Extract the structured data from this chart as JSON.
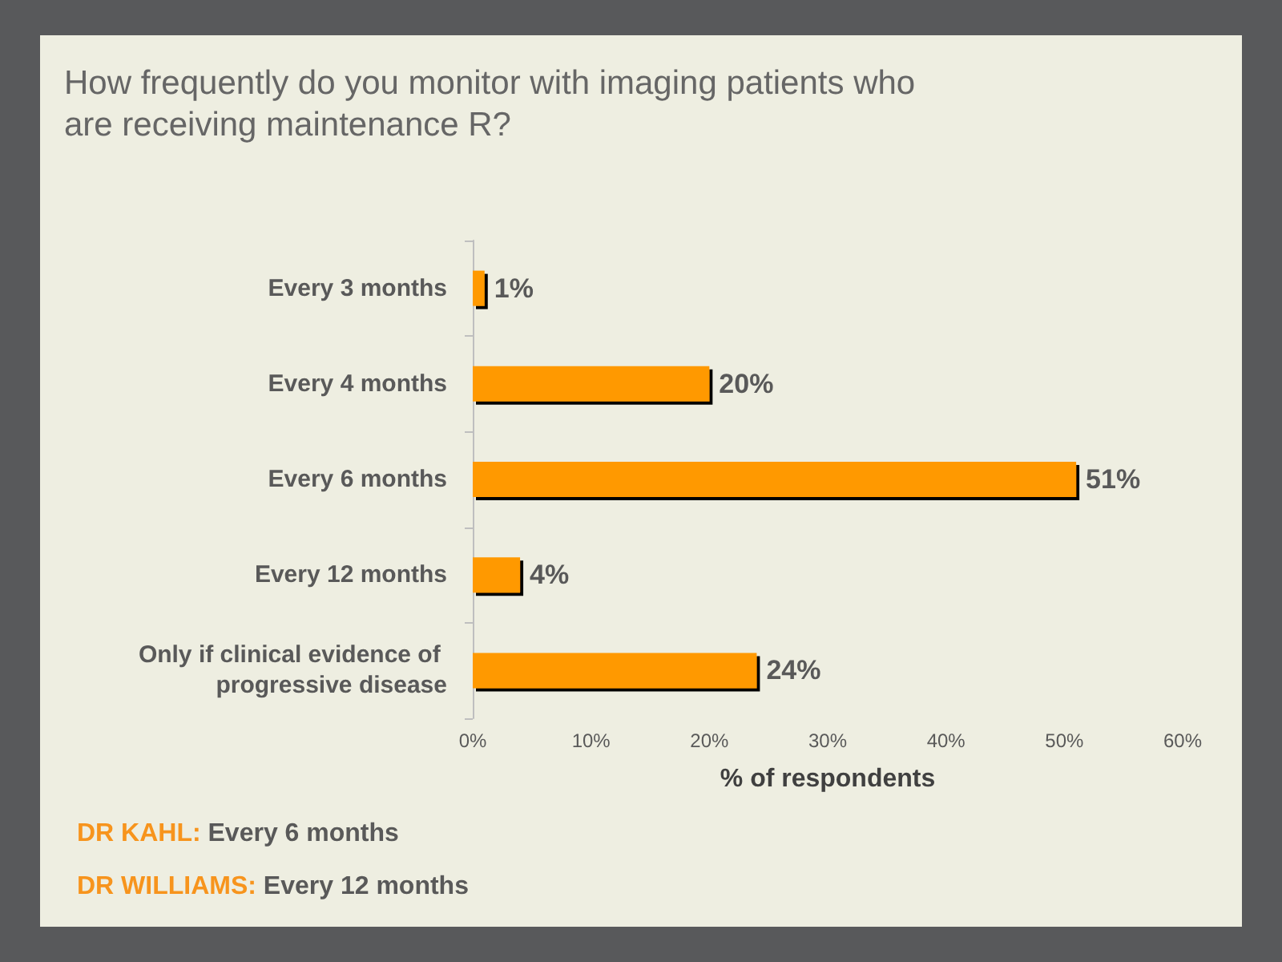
{
  "chart_data": {
    "type": "bar",
    "orientation": "horizontal",
    "title": "How frequently do you monitor with imaging patients who are receiving maintenance R?",
    "categories": [
      "Every 3 months",
      "Every 4 months",
      "Every 6 months",
      "Every 12 months",
      "Only if clinical evidence of progressive disease"
    ],
    "values": [
      1,
      20,
      51,
      4,
      24
    ],
    "color": "#ff9900",
    "value_labels": [
      "1%",
      "20%",
      "51%",
      "4%",
      "24%"
    ],
    "xlabel": "% of respondents",
    "xlim": [
      0,
      60
    ],
    "xticks": [
      {
        "value": 0,
        "label": "0%"
      },
      {
        "value": 10,
        "label": "10%"
      },
      {
        "value": 20,
        "label": "20%"
      },
      {
        "value": 30,
        "label": "30%"
      },
      {
        "value": 40,
        "label": "40%"
      },
      {
        "value": 50,
        "label": "50%"
      },
      {
        "value": 60,
        "label": "60%"
      }
    ],
    "annotations": [
      "DR KAHL: Every 6 months",
      "DR WILLIAMS: Every 12 months"
    ]
  }
}
